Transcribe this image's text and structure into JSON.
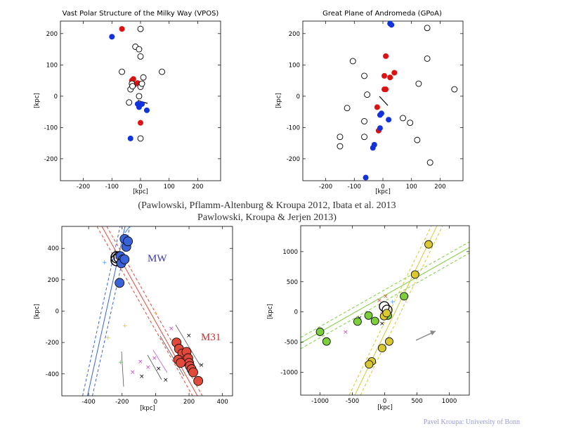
{
  "caption": {
    "line1": "(Pawlowski, Pflamm-Altenburg & Kroupa 2012, Ibata et al. 2013",
    "line2": "Pawlowski, Kroupa & Jerjen 2013)"
  },
  "credit": "Pavel Kroupa:  University of Bonn",
  "colors": {
    "red": "#dd1111",
    "blue": "#1133dd",
    "black": "#000000",
    "m31_red": "#e04a3a",
    "mw_blue": "#3a63d8",
    "green": "#7ccf3a",
    "yellow": "#d9c830"
  },
  "chart_data": [
    {
      "type": "scatter",
      "title": "Vast Polar Structure of the Milky Way (VPOS)",
      "xlabel": "[kpc]",
      "ylabel": "[kpc]",
      "xlim": [
        -280,
        280
      ],
      "ylim": [
        -270,
        240
      ],
      "xticks": [
        "-200",
        "-100",
        "0",
        "100",
        "200"
      ],
      "yticks": [
        "200",
        "100",
        "0",
        "-100",
        "-200"
      ],
      "series": [
        {
          "color": "red",
          "points": [
            [
              -65,
              215
            ],
            [
              -25,
              55
            ],
            [
              -30,
              50
            ],
            [
              -10,
              42
            ],
            [
              -20,
              38
            ],
            [
              0,
              -85
            ]
          ]
        },
        {
          "color": "blue",
          "points": [
            [
              -100,
              190
            ],
            [
              -10,
              -25
            ],
            [
              5,
              -25
            ],
            [
              22,
              -45
            ],
            [
              -35,
              -135
            ],
            [
              -5,
              -35
            ]
          ]
        },
        {
          "color": "open",
          "points": [
            [
              0,
              215
            ],
            [
              -18,
              158
            ],
            [
              -5,
              150
            ],
            [
              0,
              127
            ],
            [
              -65,
              78
            ],
            [
              75,
              78
            ],
            [
              -30,
              40
            ],
            [
              10,
              60
            ],
            [
              -35,
              22
            ],
            [
              -28,
              32
            ],
            [
              0,
              30
            ],
            [
              5,
              40
            ],
            [
              -40,
              -20
            ],
            [
              0,
              -135
            ],
            [
              -5,
              0
            ]
          ]
        }
      ]
    },
    {
      "type": "scatter",
      "title": "Great Plane of Andromeda (GPoA)",
      "xlabel": "[kpc]",
      "ylabel": "[kpc]",
      "xlim": [
        -280,
        280
      ],
      "ylim": [
        -270,
        240
      ],
      "xticks": [
        "-200",
        "-100",
        "0",
        "100",
        "200"
      ],
      "yticks": [
        "200",
        "100",
        "0",
        "-100",
        "-200"
      ],
      "series": [
        {
          "color": "red",
          "points": [
            [
              10,
              128
            ],
            [
              40,
              75
            ],
            [
              5,
              65
            ],
            [
              25,
              60
            ],
            [
              5,
              22
            ],
            [
              10,
              22
            ],
            [
              -20,
              -35
            ],
            [
              -15,
              -110
            ]
          ]
        },
        {
          "color": "blue",
          "points": [
            [
              25,
              232
            ],
            [
              30,
              228
            ],
            [
              -5,
              -55
            ],
            [
              -10,
              -60
            ],
            [
              20,
              -75
            ],
            [
              -10,
              -102
            ],
            [
              -30,
              -155
            ],
            [
              -35,
              -165
            ],
            [
              -60,
              -260
            ]
          ]
        },
        {
          "color": "open",
          "points": [
            [
              155,
              218
            ],
            [
              -105,
              112
            ],
            [
              155,
              120
            ],
            [
              -65,
              65
            ],
            [
              125,
              40
            ],
            [
              250,
              22
            ],
            [
              -55,
              5
            ],
            [
              -125,
              -38
            ],
            [
              70,
              -70
            ],
            [
              95,
              -85
            ],
            [
              -65,
              -80
            ],
            [
              -150,
              -130
            ],
            [
              -150,
              -160
            ],
            [
              -65,
              -130
            ],
            [
              120,
              -140
            ],
            [
              165,
              -212
            ]
          ]
        }
      ]
    },
    {
      "type": "scatter",
      "xlabel": "[kpc]",
      "ylabel": "[kpc]",
      "xlim": [
        -560,
        460
      ],
      "ylim": [
        -540,
        540
      ],
      "xticks": [
        "-400",
        "-200",
        "0",
        "200",
        "400"
      ],
      "yticks": [
        "400",
        "200",
        "0",
        "-200",
        "-400"
      ],
      "annotations": [
        "MW",
        "M31"
      ],
      "series": [
        {
          "color": "mw_blue",
          "points": [
            [
              -185,
              460
            ],
            [
              -175,
              410
            ],
            [
              -165,
              445
            ],
            [
              -210,
              350
            ],
            [
              -195,
              330
            ],
            [
              -205,
              305
            ],
            [
              -185,
              330
            ],
            [
              -215,
              180
            ]
          ]
        },
        {
          "color": "m31_red",
          "points": [
            [
              125,
              -200
            ],
            [
              140,
              -240
            ],
            [
              160,
              -270
            ],
            [
              170,
              -320
            ],
            [
              185,
              -260
            ],
            [
              195,
              -300
            ],
            [
              200,
              -330
            ],
            [
              205,
              -350
            ],
            [
              215,
              -370
            ],
            [
              225,
              -390
            ],
            [
              255,
              -445
            ],
            [
              135,
              -310
            ],
            [
              150,
              -330
            ]
          ]
        }
      ]
    },
    {
      "type": "scatter",
      "xlabel": "[kpc]",
      "ylabel": "[kpc]",
      "xlim": [
        -1300,
        1310
      ],
      "ylim": [
        -1380,
        1430
      ],
      "xticks": [
        "-1000",
        "-500",
        "0",
        "500",
        "1000"
      ],
      "yticks": [
        "1000",
        "500",
        "0",
        "-500",
        "-1000"
      ],
      "series": [
        {
          "color": "green",
          "points": [
            [
              -1000,
              -330
            ],
            [
              -900,
              -490
            ],
            [
              -420,
              -160
            ],
            [
              -250,
              -60
            ],
            [
              -150,
              -150
            ],
            [
              300,
              260
            ],
            [
              50,
              -60
            ]
          ]
        },
        {
          "color": "yellow",
          "points": [
            [
              680,
              1120
            ],
            [
              470,
              620
            ],
            [
              70,
              -490
            ],
            [
              -40,
              -600
            ],
            [
              -200,
              -820
            ],
            [
              -240,
              -870
            ],
            [
              -10,
              -70
            ],
            [
              30,
              -20
            ]
          ]
        }
      ]
    }
  ]
}
